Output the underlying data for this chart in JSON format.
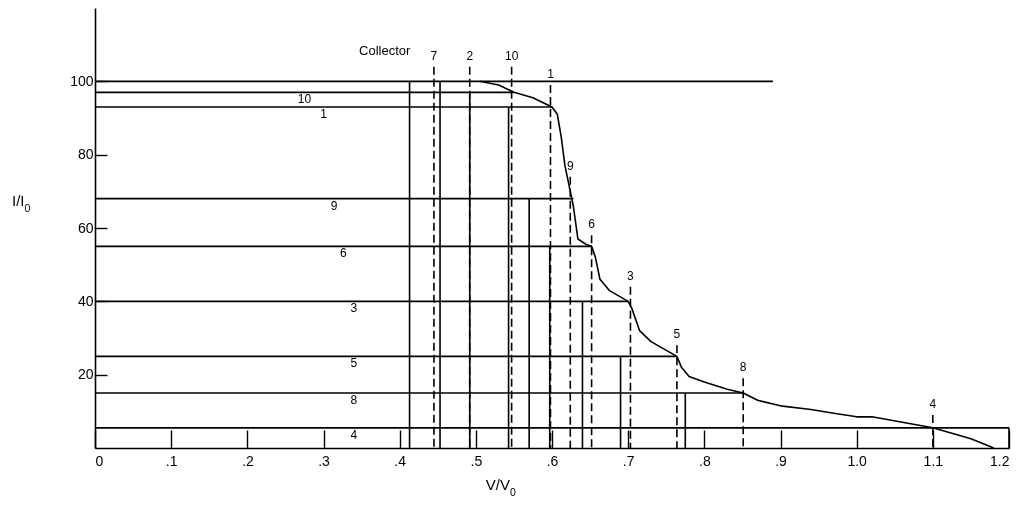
{
  "chart_data": {
    "type": "line",
    "xlabel": "V/V$_{0}$",
    "ylabel": "I/I$_{0}$",
    "xlim": [
      0,
      1.2
    ],
    "ylim": [
      0,
      120
    ],
    "xticks": [
      0,
      {
        "value": 0.1,
        "label": ".1"
      },
      {
        "value": 0.2,
        "label": ".2"
      },
      {
        "value": 0.3,
        "label": ".3"
      },
      {
        "value": 0.4,
        "label": ".4"
      },
      {
        "value": 0.5,
        "label": ".5"
      },
      {
        "value": 0.6,
        "label": ".6"
      },
      {
        "value": 0.7,
        "label": ".7"
      },
      {
        "value": 0.8,
        "label": ".8"
      },
      {
        "value": 0.9,
        "label": ".9"
      },
      {
        "value": 1.0,
        "label": "1.0"
      },
      {
        "value": 1.1,
        "label": "1.1"
      },
      {
        "value": 1.2,
        "label": "1.2"
      }
    ],
    "yticks": [
      20,
      40,
      60,
      80,
      100
    ],
    "grid": false,
    "line_style": "solid",
    "marker": "none",
    "annotations": [
      "Collector"
    ],
    "series": [
      {
        "color": "#000000",
        "x": [
          0.505,
          0.53,
          0.55,
          0.575,
          0.6,
          0.607,
          0.612,
          0.617,
          0.624,
          0.628,
          0.632,
          0.634,
          0.645,
          0.652,
          0.657,
          0.663,
          0.675,
          0.7,
          0.705,
          0.715,
          0.73,
          0.764,
          0.77,
          0.78,
          0.8,
          0.83,
          0.851,
          0.87,
          0.9,
          0.94,
          0.97,
          1.0,
          1.02,
          1.06,
          1.1,
          1.15,
          1.18
        ],
        "values": [
          100,
          99,
          97,
          95.5,
          93,
          91,
          85,
          77,
          70,
          66,
          60,
          57,
          55.5,
          55,
          52,
          46,
          43,
          40,
          38,
          32,
          29,
          25,
          22,
          19.5,
          18,
          16,
          15,
          13,
          11.5,
          10.5,
          9.5,
          8.5,
          8.5,
          7,
          5.5,
          2.5,
          0
        ]
      },
      {
        "color": "#000000",
        "x": [
          0,
          0.89
        ],
        "values": [
          100,
          100
        ]
      },
      {
        "name": "10",
        "color": "#000000",
        "x": [
          0,
          0.55
        ],
        "values": [
          97,
          97
        ]
      },
      {
        "name": "1",
        "color": "#000000",
        "x": [
          0,
          0.6
        ],
        "values": [
          93,
          93
        ]
      },
      {
        "name": "9",
        "color": "#000000",
        "x": [
          0,
          0.628
        ],
        "values": [
          68,
          68
        ]
      },
      {
        "name": "6",
        "color": "#000000",
        "x": [
          0,
          0.652
        ],
        "values": [
          55,
          55
        ]
      },
      {
        "name": "3",
        "color": "#000000",
        "x": [
          0,
          0.7
        ],
        "values": [
          40,
          40
        ]
      },
      {
        "name": "5",
        "color": "#000000",
        "x": [
          0,
          0.764
        ],
        "values": [
          25,
          25
        ]
      },
      {
        "name": "8",
        "color": "#000000",
        "x": [
          0,
          0.851
        ],
        "values": [
          15,
          15
        ]
      },
      {
        "name": "4",
        "color": "#000000",
        "x": [
          0,
          1.2
        ],
        "values": [
          5.5,
          5.5
        ]
      },
      {
        "color": "#000000",
        "x": [
          0.413,
          0.413
        ],
        "values": [
          0,
          100
        ]
      },
      {
        "color": "#000000",
        "x": [
          0.453,
          0.453
        ],
        "values": [
          0,
          100
        ]
      },
      {
        "color": "#000000",
        "x": [
          0.492,
          0.492
        ],
        "values": [
          0,
          97
        ]
      },
      {
        "color": "#000000",
        "x": [
          0.543,
          0.543
        ],
        "values": [
          0,
          93
        ]
      },
      {
        "color": "#000000",
        "x": [
          0.57,
          0.57
        ],
        "values": [
          0,
          68
        ]
      },
      {
        "color": "#000000",
        "x": [
          0.597,
          0.597
        ],
        "values": [
          0,
          55
        ]
      },
      {
        "color": "#000000",
        "x": [
          0.64,
          0.64
        ],
        "values": [
          0,
          40
        ]
      },
      {
        "color": "#000000",
        "x": [
          0.69,
          0.69
        ],
        "values": [
          0,
          25
        ]
      },
      {
        "color": "#000000",
        "x": [
          0.775,
          0.775
        ],
        "values": [
          0,
          15
        ]
      },
      {
        "color": "#000000",
        "x": [
          1.2,
          1.2
        ],
        "values": [
          0,
          5.5
        ]
      },
      {
        "name": "7",
        "color": "#000000",
        "line_style": "dashed",
        "x": [
          0.445,
          0.445
        ],
        "values": [
          104,
          0
        ]
      },
      {
        "name": "2",
        "color": "#000000",
        "line_style": "dashed",
        "x": [
          0.492,
          0.492
        ],
        "values": [
          104,
          0
        ]
      },
      {
        "name": "10",
        "color": "#000000",
        "line_style": "dashed",
        "x": [
          0.547,
          0.547
        ],
        "values": [
          104,
          0
        ]
      },
      {
        "name": "1",
        "color": "#000000",
        "line_style": "dashed",
        "x": [
          0.598,
          0.598
        ],
        "values": [
          99,
          0
        ]
      },
      {
        "name": "9",
        "color": "#000000",
        "line_style": "dashed",
        "x": [
          0.624,
          0.624
        ],
        "values": [
          74,
          0
        ]
      },
      {
        "name": "6",
        "color": "#000000",
        "line_style": "dashed",
        "x": [
          0.652,
          0.652
        ],
        "values": [
          58,
          0
        ]
      },
      {
        "name": "3",
        "color": "#000000",
        "line_style": "dashed",
        "x": [
          0.703,
          0.703
        ],
        "values": [
          44,
          0
        ]
      },
      {
        "name": "5",
        "color": "#000000",
        "line_style": "dashed",
        "x": [
          0.764,
          0.764
        ],
        "values": [
          28,
          0
        ]
      },
      {
        "name": "8",
        "color": "#000000",
        "line_style": "dashed",
        "x": [
          0.851,
          0.851
        ],
        "values": [
          19,
          0
        ]
      },
      {
        "name": "4",
        "color": "#000000",
        "line_style": "dashed",
        "x": [
          1.1,
          1.1
        ],
        "values": [
          9,
          0
        ]
      }
    ]
  }
}
